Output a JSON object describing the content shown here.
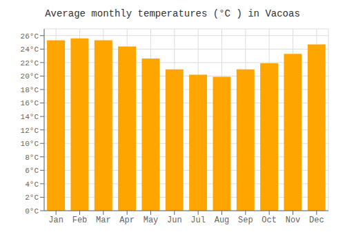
{
  "chart_data": {
    "type": "bar",
    "title": "Average monthly temperatures (°C ) in Vacoas",
    "categories": [
      "Jan",
      "Feb",
      "Mar",
      "Apr",
      "May",
      "Jun",
      "Jul",
      "Aug",
      "Sep",
      "Oct",
      "Nov",
      "Dec"
    ],
    "values": [
      25.3,
      25.6,
      25.3,
      24.4,
      22.6,
      21.0,
      20.2,
      19.9,
      21.0,
      21.9,
      23.3,
      24.7
    ],
    "color": "#FFA500",
    "ylim": [
      0,
      27
    ],
    "yticks": [
      {
        "value": 0,
        "label": "0°C"
      },
      {
        "value": 2,
        "label": "2°C"
      },
      {
        "value": 4,
        "label": "4°C"
      },
      {
        "value": 6,
        "label": "6°C"
      },
      {
        "value": 8,
        "label": "8°C"
      },
      {
        "value": 10,
        "label": "10°C"
      },
      {
        "value": 12,
        "label": "12°C"
      },
      {
        "value": 14,
        "label": "14°C"
      },
      {
        "value": 16,
        "label": "16°C"
      },
      {
        "value": 18,
        "label": "18°C"
      },
      {
        "value": 20,
        "label": "20°C"
      },
      {
        "value": 22,
        "label": "22°C"
      },
      {
        "value": 24,
        "label": "24°C"
      },
      {
        "value": 26,
        "label": "26°C"
      }
    ],
    "grid": true
  }
}
